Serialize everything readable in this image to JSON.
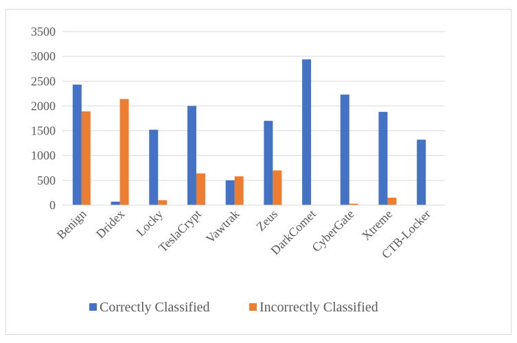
{
  "chart_data": {
    "type": "bar",
    "title": "",
    "xlabel": "",
    "ylabel": "",
    "categories": [
      "Benign",
      "Dridex",
      "Locky",
      "TeslaCrypt",
      "Vawtrak",
      "Zeus",
      "DarkComet",
      "CyberGate",
      "Xtreme",
      "CTB-Locker"
    ],
    "series": [
      {
        "name": "Correctly Classified",
        "color": "#4472C4",
        "values": [
          2430,
          70,
          1520,
          2000,
          500,
          1700,
          2940,
          2230,
          1880,
          1320
        ]
      },
      {
        "name": "Incorrectly Classified",
        "color": "#ED7D31",
        "values": [
          1890,
          2140,
          100,
          640,
          580,
          700,
          0,
          30,
          150,
          0
        ]
      }
    ],
    "ylim": [
      0,
      3500
    ],
    "yticks": [
      0,
      500,
      1000,
      1500,
      2000,
      2500,
      3000,
      3500
    ],
    "grid": true,
    "legend_position": "bottom"
  }
}
